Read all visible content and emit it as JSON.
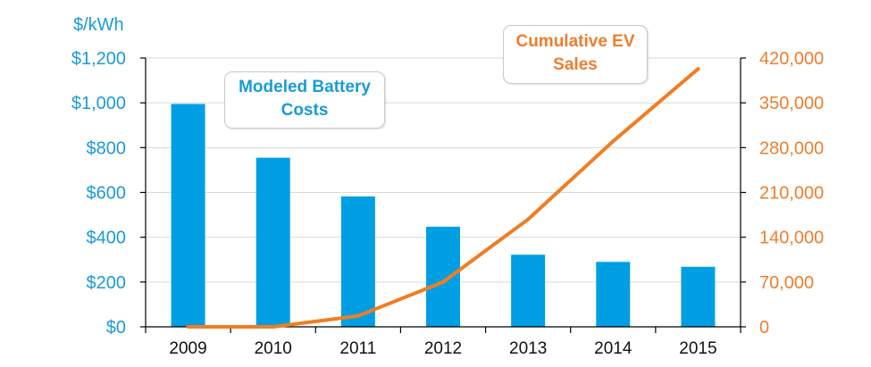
{
  "chart_data": {
    "type": "bar+line",
    "y_left_unit": "$/kWh",
    "categories": [
      "2009",
      "2010",
      "2011",
      "2012",
      "2013",
      "2014",
      "2015"
    ],
    "y_left_ticks": [
      "$0",
      "$200",
      "$400",
      "$600",
      "$800",
      "$1,000",
      "$1,200"
    ],
    "y_left_range": [
      0,
      1200
    ],
    "y_right_ticks": [
      "0",
      "70,000",
      "140,000",
      "210,000",
      "280,000",
      "350,000",
      "420,000"
    ],
    "y_right_range": [
      0,
      420000
    ],
    "series": [
      {
        "name": "Modeled Battery Costs",
        "type": "bar",
        "axis": "left",
        "color": "#009fe3",
        "values": [
          995,
          755,
          582,
          447,
          322,
          290,
          268
        ]
      },
      {
        "name": "Cumulative EV Sales",
        "type": "line",
        "axis": "right",
        "color": "#f07d23",
        "values": [
          0,
          0,
          17000,
          70000,
          168000,
          290000,
          403000
        ]
      }
    ],
    "annotations": [
      {
        "id": "battery",
        "lines": [
          "Modeled Battery",
          "Costs"
        ],
        "color": "#1a9bd7"
      },
      {
        "id": "ev",
        "lines": [
          "Cumulative EV",
          "Sales"
        ],
        "color": "#ef7d2d"
      }
    ]
  }
}
